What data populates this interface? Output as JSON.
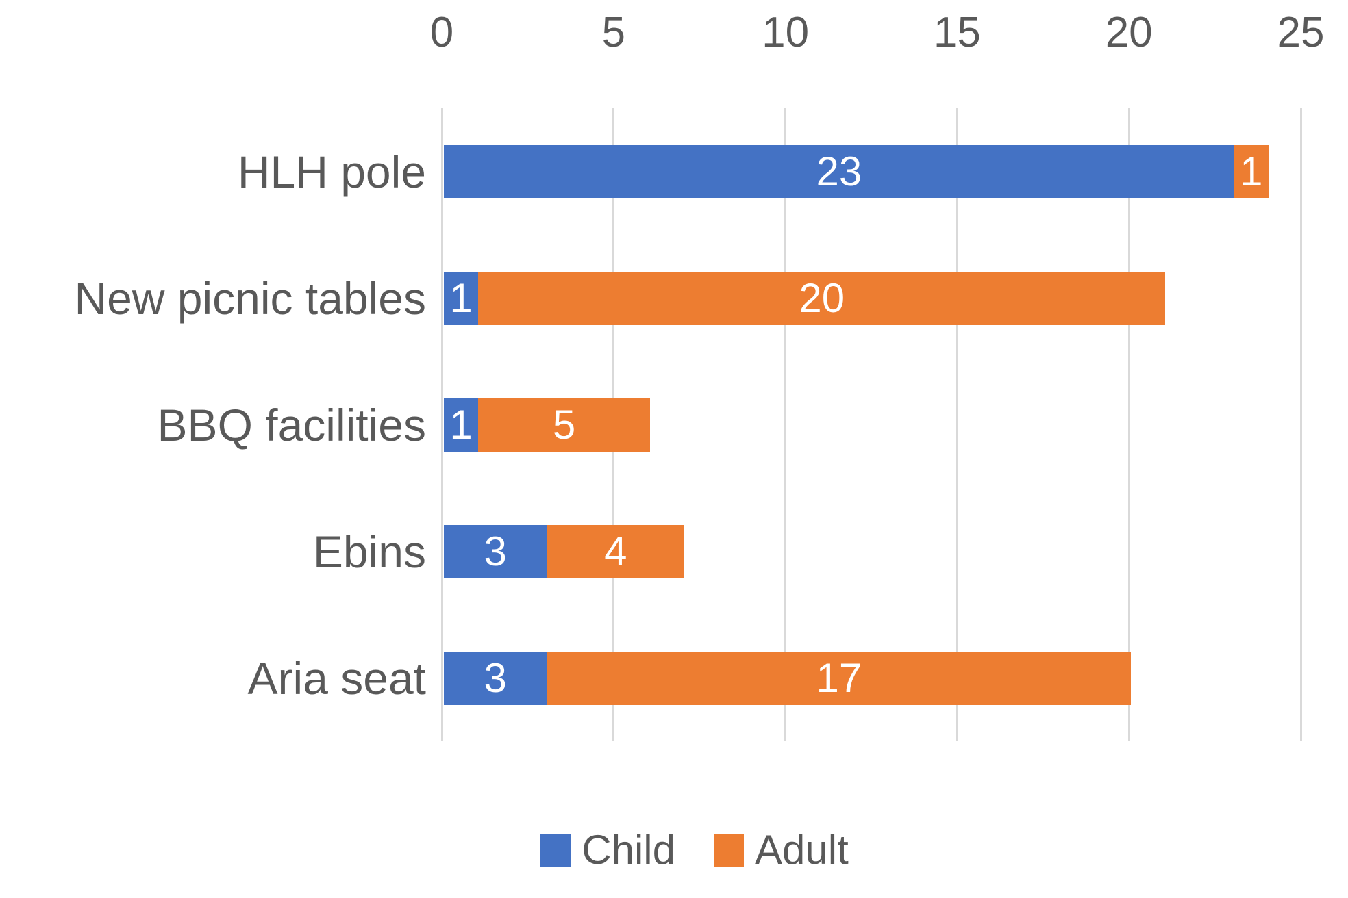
{
  "chart_data": {
    "type": "bar",
    "orientation": "horizontal",
    "stacked": true,
    "title": "",
    "categories": [
      "HLH pole",
      "New picnic tables",
      "BBQ facilities",
      "Ebins",
      "Aria seat"
    ],
    "series": [
      {
        "name": "Child",
        "color": "#4472C4",
        "values": [
          23,
          1,
          1,
          3,
          3
        ]
      },
      {
        "name": "Adult",
        "color": "#ED7D31",
        "values": [
          1,
          20,
          5,
          4,
          17
        ]
      }
    ],
    "x_ticks": [
      0,
      5,
      10,
      15,
      20,
      25
    ],
    "xlim": [
      0,
      25
    ],
    "xlabel": "",
    "ylabel": "",
    "grid": true,
    "axis_position": "top",
    "legend_position": "bottom",
    "data_labels_visible": true
  },
  "colors": {
    "child_series": "#4472C4",
    "adult_series": "#ED7D31",
    "gridline": "#D9D9D9",
    "axis_text": "#595959",
    "data_label": "#FFFFFF",
    "background": "#FFFFFF"
  }
}
